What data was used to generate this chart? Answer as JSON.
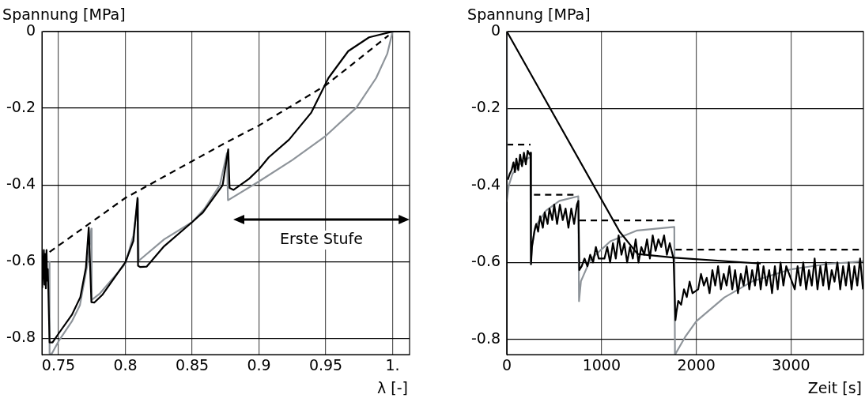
{
  "chart_data": [
    {
      "type": "line",
      "ylabel": "Spannung [MPa]",
      "xlabel": "λ [-]",
      "xlim": [
        0.7376,
        1.0127
      ],
      "xticks": [
        0.75,
        0.8,
        0.85,
        0.9,
        0.95,
        {
          "value": 1,
          "label": "1."
        }
      ],
      "ylim": [
        -0.843,
        0
      ],
      "yticks": [
        0,
        -0.2,
        -0.4,
        -0.6,
        -0.8
      ],
      "grid": true,
      "legend": false,
      "annotations": [
        "Erste Stufe"
      ],
      "series": [
        {
          "color": "#000000",
          "line_style": "solid",
          "x": [
            0.7378,
            0.739,
            0.7395,
            0.74,
            0.7405,
            0.741,
            0.7415,
            0.742,
            0.7433,
            0.7455,
            0.75,
            0.76,
            0.7663,
            0.7705,
            0.7726,
            0.7746,
            0.7767,
            0.783,
            0.8,
            0.806,
            0.8091,
            0.8095,
            0.811,
            0.816,
            0.829,
            0.85,
            0.858,
            0.8728,
            0.877,
            0.878,
            0.881,
            0.8926,
            0.9,
            0.9073,
            0.9225,
            0.939,
            0.952,
            0.9668,
            0.9824,
            1.0,
            1.0127
          ],
          "values": [
            -0.669,
            -0.57,
            -0.66,
            -0.58,
            -0.67,
            -0.57,
            -0.65,
            -0.62,
            -0.811,
            -0.811,
            -0.788,
            -0.739,
            -0.693,
            -0.616,
            -0.511,
            -0.706,
            -0.707,
            -0.686,
            -0.602,
            -0.546,
            -0.434,
            -0.611,
            -0.614,
            -0.613,
            -0.56,
            -0.497,
            -0.472,
            -0.401,
            -0.307,
            -0.408,
            -0.413,
            -0.384,
            -0.359,
            -0.328,
            -0.282,
            -0.212,
            -0.121,
            -0.051,
            -0.015,
            0,
            0
          ]
        },
        {
          "color": "#8e949a",
          "line_style": "solid",
          "x": [
            0.7433,
            0.7433,
            0.745,
            0.75,
            0.76,
            0.766,
            0.7715,
            0.7745,
            0.7748,
            0.781,
            0.8,
            0.806,
            0.8095,
            0.81,
            0.829,
            0.85,
            0.8592,
            0.8707,
            0.876,
            0.8768,
            0.9,
            0.925,
            0.95,
            0.973,
            0.9877,
            0.996,
            1.0
          ],
          "values": [
            -0.6,
            -0.84,
            -0.84,
            -0.808,
            -0.756,
            -0.714,
            -0.609,
            -0.514,
            -0.7,
            -0.683,
            -0.606,
            -0.532,
            -0.437,
            -0.598,
            -0.542,
            -0.497,
            -0.462,
            -0.401,
            -0.317,
            -0.44,
            -0.391,
            -0.335,
            -0.272,
            -0.198,
            -0.121,
            -0.058,
            0
          ]
        },
        {
          "color": "#000000",
          "line_style": "dashed",
          "x": [
            0.7433,
            0.8,
            0.875,
            0.9,
            0.95,
            0.997
          ],
          "values": [
            -0.575,
            -0.434,
            -0.29,
            -0.245,
            -0.14,
            -0.01
          ]
        }
      ]
    },
    {
      "type": "line",
      "ylabel": "Spannung [MPa]",
      "xlabel": "Zeit [s]",
      "xlim": [
        0,
        3765
      ],
      "xticks": [
        0,
        1000,
        2000,
        3000
      ],
      "ylim": [
        -0.84,
        0
      ],
      "yticks": [
        0,
        -0.2,
        -0.4,
        -0.6,
        -0.8
      ],
      "grid": true,
      "legend": false,
      "series": [
        {
          "color": "#000000",
          "line_style": "solid",
          "x": [
            10,
            30,
            50,
            70,
            85,
            100,
            120,
            140,
            160,
            180,
            200,
            220,
            240,
            250,
            255,
            265,
            290,
            310,
            330,
            350,
            380,
            400,
            430,
            450,
            480,
            500,
            530,
            560,
            590,
            620,
            650,
            680,
            710,
            740,
            755,
            765,
            790,
            820,
            850,
            880,
            910,
            940,
            970,
            1000,
            1030,
            1060,
            1090,
            1120,
            1150,
            1180,
            1210,
            1240,
            1270,
            1300,
            1330,
            1360,
            1390,
            1420,
            1450,
            1480,
            1510,
            1540,
            1570,
            1600,
            1630,
            1660,
            1690,
            1720,
            1760,
            1780,
            1790,
            1810,
            1840,
            1870,
            1900,
            1930,
            1960,
            1990,
            2020,
            2050,
            2080,
            2110,
            2140,
            2170,
            2200,
            2230,
            2260,
            2290,
            2320,
            2350,
            2380,
            2410,
            2440,
            2470,
            2500,
            2530,
            2560,
            2590,
            2620,
            2650,
            2680,
            2710,
            2740,
            2770,
            2800,
            2830,
            2860,
            2890,
            2920,
            2950,
            2980,
            3010,
            3040,
            3070,
            3100,
            3130,
            3160,
            3190,
            3220,
            3250,
            3280,
            3310,
            3340,
            3370,
            3400,
            3430,
            3460,
            3490,
            3520,
            3550,
            3580,
            3610,
            3640,
            3670,
            3700,
            3730,
            3760
          ],
          "values": [
            -0.385,
            -0.37,
            -0.36,
            -0.34,
            -0.365,
            -0.33,
            -0.36,
            -0.32,
            -0.35,
            -0.315,
            -0.345,
            -0.31,
            -0.32,
            -0.315,
            -0.605,
            -0.56,
            -0.52,
            -0.5,
            -0.52,
            -0.48,
            -0.51,
            -0.47,
            -0.5,
            -0.46,
            -0.49,
            -0.45,
            -0.5,
            -0.45,
            -0.49,
            -0.46,
            -0.51,
            -0.46,
            -0.5,
            -0.45,
            -0.44,
            -0.62,
            -0.61,
            -0.59,
            -0.61,
            -0.58,
            -0.6,
            -0.56,
            -0.59,
            -0.59,
            -0.59,
            -0.56,
            -0.6,
            -0.55,
            -0.59,
            -0.53,
            -0.58,
            -0.55,
            -0.6,
            -0.56,
            -0.59,
            -0.54,
            -0.6,
            -0.56,
            -0.58,
            -0.54,
            -0.59,
            -0.53,
            -0.57,
            -0.54,
            -0.56,
            -0.53,
            -0.58,
            -0.55,
            -0.59,
            -0.75,
            -0.73,
            -0.7,
            -0.71,
            -0.67,
            -0.69,
            -0.65,
            -0.68,
            -0.675,
            -0.67,
            -0.63,
            -0.66,
            -0.64,
            -0.68,
            -0.62,
            -0.66,
            -0.61,
            -0.67,
            -0.63,
            -0.66,
            -0.61,
            -0.67,
            -0.62,
            -0.68,
            -0.63,
            -0.66,
            -0.61,
            -0.67,
            -0.62,
            -0.66,
            -0.6,
            -0.67,
            -0.61,
            -0.66,
            -0.62,
            -0.68,
            -0.61,
            -0.67,
            -0.6,
            -0.66,
            -0.61,
            -0.63,
            -0.65,
            -0.67,
            -0.61,
            -0.66,
            -0.6,
            -0.67,
            -0.62,
            -0.66,
            -0.59,
            -0.67,
            -0.61,
            -0.66,
            -0.6,
            -0.67,
            -0.62,
            -0.65,
            -0.6,
            -0.67,
            -0.61,
            -0.66,
            -0.6,
            -0.67,
            -0.61,
            -0.66,
            -0.59,
            -0.67
          ]
        },
        {
          "color": "#000000",
          "line_style": "solid",
          "x": [
            0,
            1190,
            1380,
            1773,
            2680
          ],
          "values": [
            0,
            -0.52,
            -0.578,
            -0.588,
            -0.603
          ]
        },
        {
          "color": "#8e949a",
          "line_style": "solid",
          "x": [
            0,
            0,
            20,
            59,
            130,
            249,
            252,
            266,
            300,
            414,
            555,
            754,
            762,
            782,
            881,
            1093,
            1377,
            1768,
            1775,
            1887,
            2000,
            2297,
            2595,
            3000,
            3388,
            3765
          ],
          "values": [
            0,
            -0.44,
            -0.4,
            -0.37,
            -0.346,
            -0.325,
            -0.604,
            -0.555,
            -0.507,
            -0.465,
            -0.44,
            -0.428,
            -0.701,
            -0.649,
            -0.593,
            -0.545,
            -0.517,
            -0.508,
            -0.84,
            -0.792,
            -0.753,
            -0.691,
            -0.649,
            -0.618,
            -0.604,
            -0.597
          ]
        },
        {
          "color": "#000000",
          "line_style": "dashed",
          "x": [
            0,
            250,
            255,
            286,
            754,
            760,
            768,
            1773,
            1775,
            1780,
            3765
          ],
          "values": [
            -0.294,
            -0.294,
            null,
            -0.424,
            -0.424,
            null,
            -0.491,
            -0.491,
            null,
            -0.567,
            -0.567
          ]
        }
      ]
    }
  ]
}
